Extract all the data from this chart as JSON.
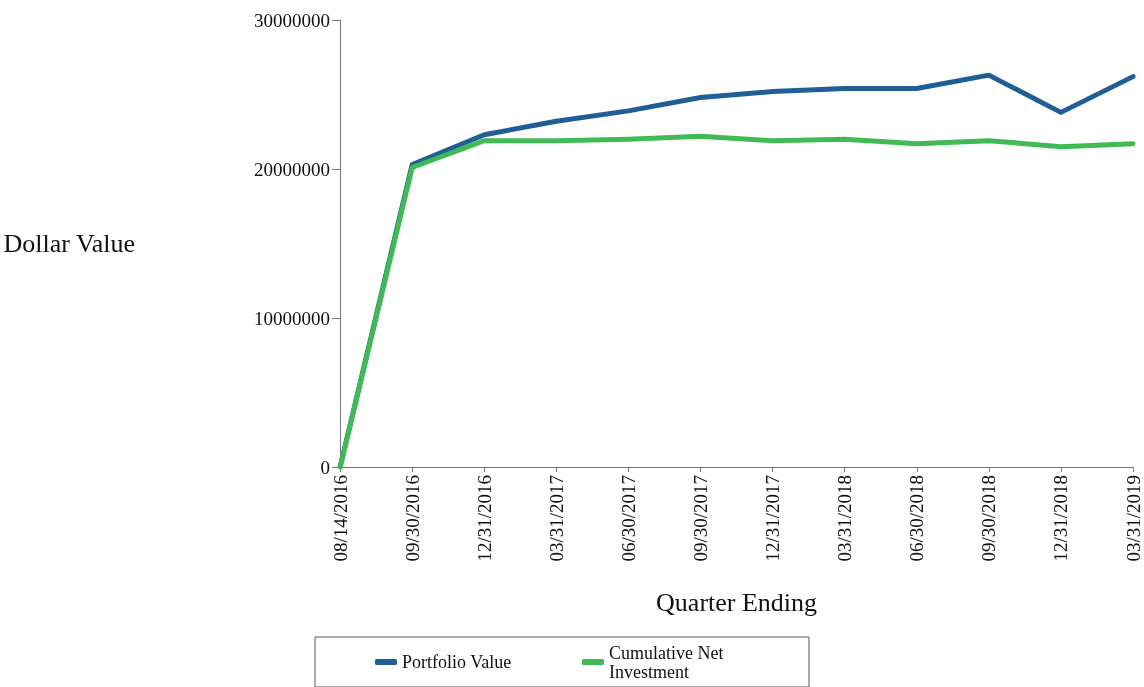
{
  "chart_data": {
    "type": "line",
    "xlabel": "Quarter Ending",
    "ylabel": "Dollar Value",
    "categories": [
      "08/14/2016",
      "09/30/2016",
      "12/31/2016",
      "03/31/2017",
      "06/30/2017",
      "09/30/2017",
      "12/31/2017",
      "03/31/2018",
      "06/30/2018",
      "09/30/2018",
      "12/31/2018",
      "03/31/2019"
    ],
    "series": [
      {
        "name": "Portfolio Value",
        "color": "#1f5f96",
        "values": [
          0,
          20300000,
          22300000,
          23200000,
          23900000,
          24800000,
          25200000,
          25400000,
          25400000,
          26300000,
          23800000,
          26200000
        ]
      },
      {
        "name": "Cumulative Net Investment",
        "color": "#3fba55",
        "values": [
          0,
          20100000,
          21900000,
          21900000,
          22000000,
          22200000,
          21900000,
          22000000,
          21700000,
          21900000,
          21500000,
          21700000
        ]
      }
    ],
    "ylim": [
      0,
      30000000
    ],
    "yticks": [
      0,
      10000000,
      20000000,
      30000000
    ],
    "grid": false,
    "legend": "bottom",
    "marker": "none",
    "line_style": "solid"
  }
}
